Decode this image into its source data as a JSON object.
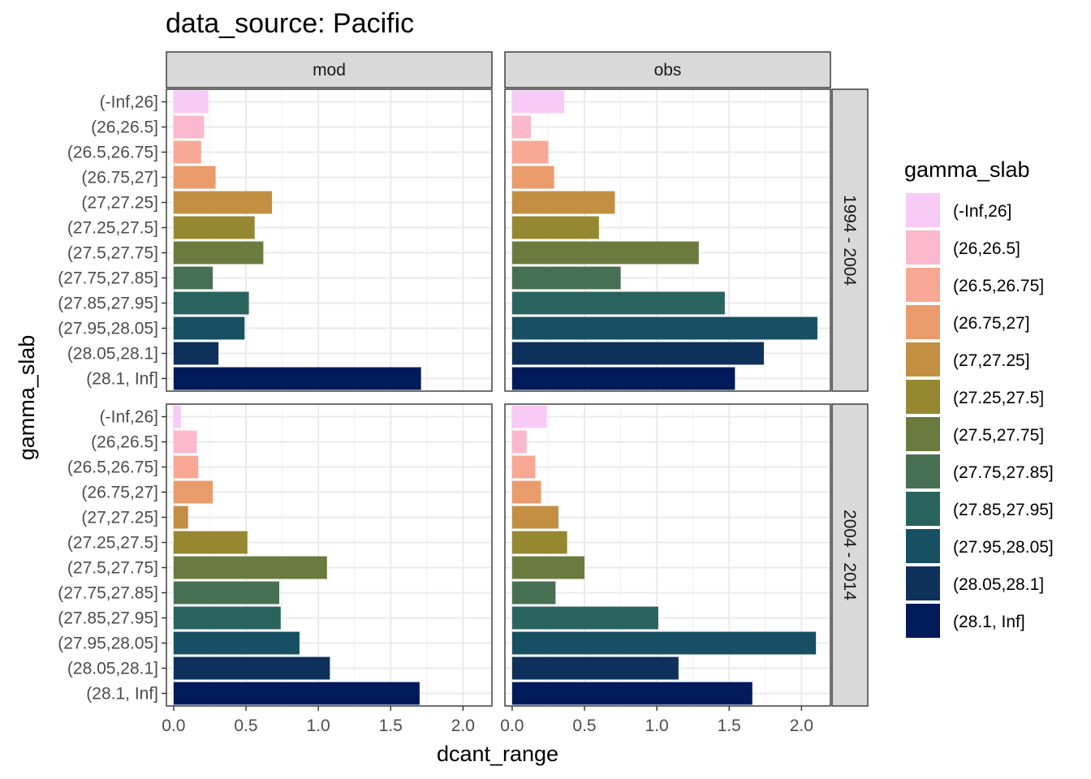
{
  "chart_data": {
    "type": "bar",
    "orientation": "horizontal",
    "title": "data_source: Pacific",
    "xlabel": "dcant_range",
    "ylabel": "gamma_slab",
    "xlim": [
      -0.05,
      2.2
    ],
    "x_ticks": [
      0.0,
      0.5,
      1.0,
      1.5,
      2.0
    ],
    "x_tick_labels": [
      "0.0",
      "0.5",
      "1.0",
      "1.5",
      "2.0"
    ],
    "grid": true,
    "legend_position": "right",
    "legend_title": "gamma_slab",
    "categories": [
      "(-Inf,26]",
      "(26,26.5]",
      "(26.5,26.75]",
      "(26.75,27]",
      "(27,27.25]",
      "(27.25,27.5]",
      "(27.5,27.75]",
      "(27.75,27.85]",
      "(27.85,27.95]",
      "(27.95,28.05]",
      "(28.05,28.1]",
      "(28.1, Inf]"
    ],
    "colors": [
      "#F8CBF6",
      "#FCB8CC",
      "#F9A795",
      "#EA9B6B",
      "#C38F42",
      "#968731",
      "#6B7A3E",
      "#477052",
      "#29635E",
      "#174F63",
      "#0E315C",
      "#001A5A"
    ],
    "facet_columns": [
      "mod",
      "obs"
    ],
    "facet_rows": [
      "1994 - 2004",
      "2004 - 2014"
    ],
    "panels": [
      {
        "col": "mod",
        "row": "1994 - 2004",
        "values": [
          0.24,
          0.21,
          0.19,
          0.29,
          0.68,
          0.56,
          0.62,
          0.27,
          0.52,
          0.49,
          0.31,
          1.71
        ]
      },
      {
        "col": "obs",
        "row": "1994 - 2004",
        "values": [
          0.36,
          0.13,
          0.25,
          0.29,
          0.71,
          0.6,
          1.29,
          0.75,
          1.47,
          2.11,
          1.74,
          1.54
        ]
      },
      {
        "col": "mod",
        "row": "2004 - 2014",
        "values": [
          0.05,
          0.16,
          0.17,
          0.27,
          0.1,
          0.51,
          1.06,
          0.73,
          0.74,
          0.87,
          1.08,
          1.7
        ]
      },
      {
        "col": "obs",
        "row": "2004 - 2014",
        "values": [
          0.24,
          0.1,
          0.16,
          0.2,
          0.32,
          0.38,
          0.5,
          0.3,
          1.01,
          2.1,
          1.15,
          1.66
        ]
      }
    ]
  }
}
